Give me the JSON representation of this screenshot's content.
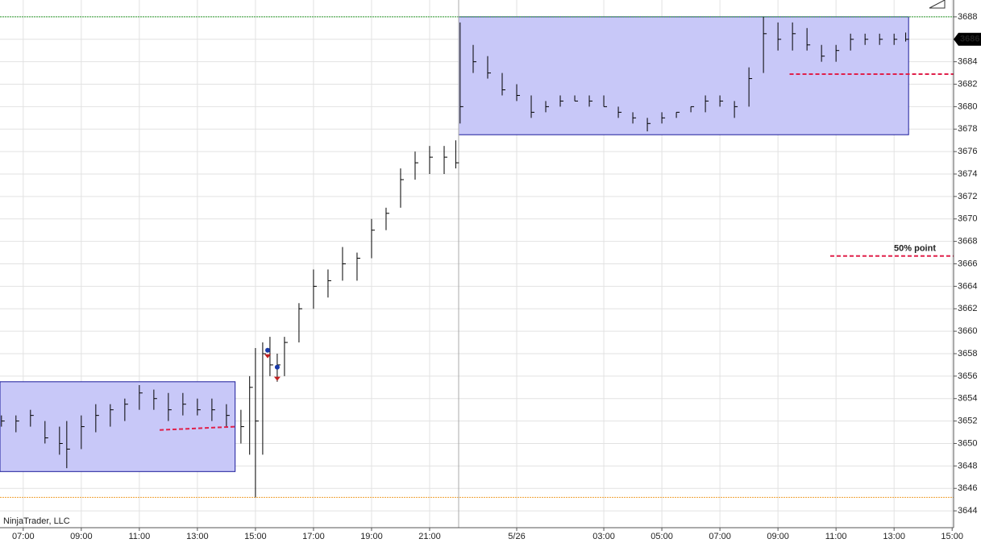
{
  "chart_data": {
    "type": "ohlc",
    "watermark": "NinjaTrader, LLC",
    "bar_color": "#000000",
    "grid": true,
    "xlim": [
      6.2,
      39.05
    ],
    "ylim": [
      3642.5,
      3689.5
    ],
    "xticks": [
      {
        "value": 7,
        "label": "07:00"
      },
      {
        "value": 9,
        "label": "09:00"
      },
      {
        "value": 11,
        "label": "11:00"
      },
      {
        "value": 13,
        "label": "13:00"
      },
      {
        "value": 15,
        "label": "15:00"
      },
      {
        "value": 17,
        "label": "17:00"
      },
      {
        "value": 19,
        "label": "19:00"
      },
      {
        "value": 21,
        "label": "21:00"
      },
      {
        "value": 24,
        "label": "5/26"
      },
      {
        "value": 27,
        "label": "03:00"
      },
      {
        "value": 29,
        "label": "05:00"
      },
      {
        "value": 31,
        "label": "07:00"
      },
      {
        "value": 33,
        "label": "09:00"
      },
      {
        "value": 35,
        "label": "11:00"
      },
      {
        "value": 37,
        "label": "13:00"
      },
      {
        "value": 39,
        "label": "15:00"
      }
    ],
    "yticks": [
      3644,
      3646,
      3648,
      3650,
      3652,
      3654,
      3656,
      3658,
      3660,
      3662,
      3664,
      3666,
      3668,
      3670,
      3672,
      3674,
      3676,
      3678,
      3680,
      3682,
      3684,
      3686,
      3688
    ],
    "x": [
      6.25,
      6.75,
      7.25,
      7.75,
      8.25,
      8.5,
      9.0,
      9.5,
      10.0,
      10.5,
      11.0,
      11.5,
      12.0,
      12.5,
      13.0,
      13.5,
      14.0,
      14.5,
      14.8,
      15.0,
      15.25,
      15.5,
      15.75,
      16.0,
      16.5,
      17.0,
      17.5,
      18.0,
      18.5,
      19.0,
      19.5,
      20.0,
      20.5,
      21.0,
      21.5,
      21.9,
      22.05,
      22.5,
      23.0,
      23.5,
      24.0,
      24.5,
      25.0,
      25.5,
      26.0,
      26.5,
      27.0,
      27.5,
      28.0,
      28.5,
      29.0,
      29.5,
      30.0,
      30.5,
      31.0,
      31.5,
      32.0,
      32.5,
      33.0,
      33.5,
      34.0,
      34.5,
      35.0,
      35.5,
      36.0,
      36.5,
      37.0,
      37.4
    ],
    "low": [
      3651.5,
      3651,
      3651.5,
      3650,
      3649,
      3647.8,
      3649.5,
      3651,
      3651.5,
      3652,
      3653,
      3653,
      3652,
      3652.5,
      3652.5,
      3652,
      3651.5,
      3650,
      3649,
      3645.2,
      3649,
      3656,
      3655.5,
      3656,
      3659,
      3662,
      3663,
      3664.5,
      3664.5,
      3666.5,
      3669,
      3671,
      3673.5,
      3674,
      3674,
      3674.5,
      3678.5,
      3683,
      3682.5,
      3681,
      3680.5,
      3679,
      3679.5,
      3680,
      3680.5,
      3680,
      3680,
      3679,
      3678.5,
      3677.8,
      3678.5,
      3679,
      3679.5,
      3679.5,
      3680,
      3679,
      3680,
      3683,
      3685,
      3685,
      3685,
      3684,
      3684,
      3685,
      3685.5,
      3685.5,
      3685.5,
      3685.8
    ],
    "high": [
      3652.5,
      3652.5,
      3653,
      3652,
      3651.5,
      3652,
      3652.5,
      3653.5,
      3653.5,
      3654,
      3655.2,
      3654.8,
      3654.5,
      3654.5,
      3654,
      3654,
      3653.5,
      3653,
      3656,
      3658.5,
      3659,
      3659.5,
      3658,
      3659.5,
      3662.5,
      3665.5,
      3665.5,
      3667.5,
      3667,
      3670,
      3671,
      3674.5,
      3676,
      3676.5,
      3676.5,
      3677,
      3687.5,
      3685.5,
      3684.5,
      3683,
      3682,
      3681,
      3680.5,
      3681,
      3681,
      3681,
      3681,
      3680,
      3679.5,
      3679,
      3679.5,
      3679.5,
      3680,
      3681,
      3681,
      3680.5,
      3683.5,
      3688,
      3687.5,
      3687.5,
      3687,
      3685.5,
      3685.5,
      3686.5,
      3686.5,
      3686.5,
      3686.5,
      3686.6
    ],
    "close": [
      3652,
      3652,
      3652.5,
      3650.5,
      3650,
      3649.5,
      3651.5,
      3652.5,
      3653,
      3653.5,
      3654.5,
      3654,
      3653,
      3653.5,
      3653,
      3653,
      3652.5,
      3651.5,
      3655,
      3652,
      3658,
      3657,
      3657,
      3659,
      3662,
      3664,
      3664.5,
      3666,
      3666.5,
      3669,
      3670.5,
      3673.5,
      3675,
      3675.5,
      3675.5,
      3675,
      3680,
      3684,
      3683,
      3681.5,
      3681,
      3679.5,
      3680,
      3680.5,
      3680.5,
      3680.5,
      3680,
      3679.5,
      3679,
      3678.5,
      3679,
      3679.5,
      3680,
      3680.5,
      3680.5,
      3680,
      3682.5,
      3686.5,
      3686,
      3686.5,
      3685.5,
      3684.5,
      3685,
      3686,
      3686,
      3686,
      3686,
      3686
    ],
    "last_price": 3686,
    "boxes": [
      {
        "xlim": [
          6.2,
          14.3
        ],
        "ylim": [
          3647.5,
          3655.5
        ],
        "color": "#c8c8f8"
      },
      {
        "xlim": [
          22.0,
          37.5
        ],
        "ylim": [
          3677.5,
          3688
        ],
        "color": "#c8c8f8"
      }
    ],
    "levels": [
      {
        "value": 3688,
        "color": "#2e9e2e"
      },
      {
        "value": 3645.2,
        "color": "#f0a030"
      }
    ],
    "cursor_x": 22.0,
    "dashed_lines": [
      {
        "x": [
          11.7,
          14.3
        ],
        "y": [
          3651.2,
          3651.5
        ],
        "color": "#e0204a"
      },
      {
        "x": [
          33.4,
          39.05
        ],
        "y": [
          3682.9,
          3682.9
        ],
        "color": "#e0204a"
      },
      {
        "x": [
          34.8,
          39.05
        ],
        "y": [
          3666.7,
          3666.7
        ],
        "color": "#e0204a",
        "label": "50% point"
      }
    ],
    "markers": [
      {
        "x": 15.42,
        "y": 3658.3,
        "shape": "dot",
        "color": "#1a3aa8"
      },
      {
        "x": 15.42,
        "y": 3657.8,
        "shape": "triangle",
        "color": "#c02020"
      },
      {
        "x": 15.75,
        "y": 3656.8,
        "shape": "dot",
        "color": "#1a3aa8"
      },
      {
        "x": 15.75,
        "y": 3655.8,
        "shape": "triangle",
        "color": "#c02020"
      }
    ]
  }
}
